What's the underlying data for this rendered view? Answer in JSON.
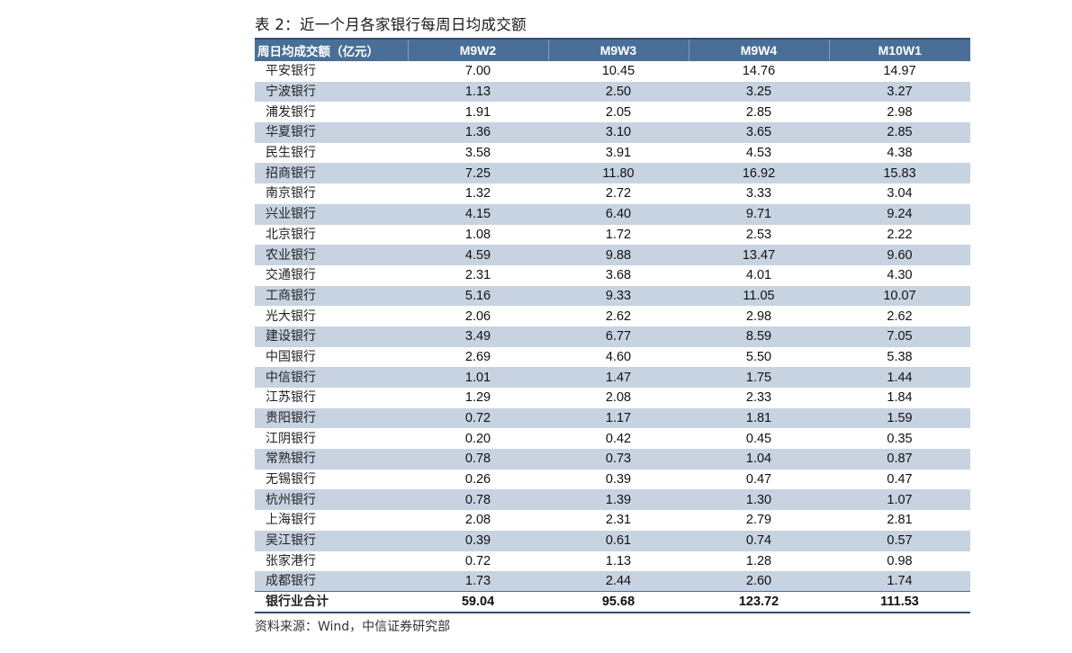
{
  "title": "表 2：近一个月各家银行每周日均成交额",
  "table": {
    "headers": [
      "周日均成交额（亿元）",
      "M9W2",
      "M9W3",
      "M9W4",
      "M10W1"
    ],
    "rows": [
      {
        "name": "平安银行",
        "values": [
          "7.00",
          "10.45",
          "14.76",
          "14.97"
        ]
      },
      {
        "name": "宁波银行",
        "values": [
          "1.13",
          "2.50",
          "3.25",
          "3.27"
        ]
      },
      {
        "name": "浦发银行",
        "values": [
          "1.91",
          "2.05",
          "2.85",
          "2.98"
        ]
      },
      {
        "name": "华夏银行",
        "values": [
          "1.36",
          "3.10",
          "3.65",
          "2.85"
        ]
      },
      {
        "name": "民生银行",
        "values": [
          "3.58",
          "3.91",
          "4.53",
          "4.38"
        ]
      },
      {
        "name": "招商银行",
        "values": [
          "7.25",
          "11.80",
          "16.92",
          "15.83"
        ]
      },
      {
        "name": "南京银行",
        "values": [
          "1.32",
          "2.72",
          "3.33",
          "3.04"
        ]
      },
      {
        "name": "兴业银行",
        "values": [
          "4.15",
          "6.40",
          "9.71",
          "9.24"
        ]
      },
      {
        "name": "北京银行",
        "values": [
          "1.08",
          "1.72",
          "2.53",
          "2.22"
        ]
      },
      {
        "name": "农业银行",
        "values": [
          "4.59",
          "9.88",
          "13.47",
          "9.60"
        ]
      },
      {
        "name": "交通银行",
        "values": [
          "2.31",
          "3.68",
          "4.01",
          "4.30"
        ]
      },
      {
        "name": "工商银行",
        "values": [
          "5.16",
          "9.33",
          "11.05",
          "10.07"
        ]
      },
      {
        "name": "光大银行",
        "values": [
          "2.06",
          "2.62",
          "2.98",
          "2.62"
        ]
      },
      {
        "name": "建设银行",
        "values": [
          "3.49",
          "6.77",
          "8.59",
          "7.05"
        ]
      },
      {
        "name": "中国银行",
        "values": [
          "2.69",
          "4.60",
          "5.50",
          "5.38"
        ]
      },
      {
        "name": "中信银行",
        "values": [
          "1.01",
          "1.47",
          "1.75",
          "1.44"
        ]
      },
      {
        "name": "江苏银行",
        "values": [
          "1.29",
          "2.08",
          "2.33",
          "1.84"
        ]
      },
      {
        "name": "贵阳银行",
        "values": [
          "0.72",
          "1.17",
          "1.81",
          "1.59"
        ]
      },
      {
        "name": "江阴银行",
        "values": [
          "0.20",
          "0.42",
          "0.45",
          "0.35"
        ]
      },
      {
        "name": "常熟银行",
        "values": [
          "0.78",
          "0.73",
          "1.04",
          "0.87"
        ]
      },
      {
        "name": "无锡银行",
        "values": [
          "0.26",
          "0.39",
          "0.47",
          "0.47"
        ]
      },
      {
        "name": "杭州银行",
        "values": [
          "0.78",
          "1.39",
          "1.30",
          "1.07"
        ]
      },
      {
        "name": "上海银行",
        "values": [
          "2.08",
          "2.31",
          "2.79",
          "2.81"
        ]
      },
      {
        "name": "吴江银行",
        "values": [
          "0.39",
          "0.61",
          "0.74",
          "0.57"
        ]
      },
      {
        "name": "张家港行",
        "values": [
          "0.72",
          "1.13",
          "1.28",
          "0.98"
        ]
      },
      {
        "name": "成都银行",
        "values": [
          "1.73",
          "2.44",
          "2.60",
          "1.74"
        ]
      }
    ],
    "total": {
      "name": "银行业合计",
      "values": [
        "59.04",
        "95.68",
        "123.72",
        "111.53"
      ]
    }
  },
  "source": "资料来源：Wind，中信证券研究部",
  "colors": {
    "header_bg": "#4a6f96",
    "alt_row_bg": "#c7d3e1",
    "rule": "#2f4e72"
  }
}
